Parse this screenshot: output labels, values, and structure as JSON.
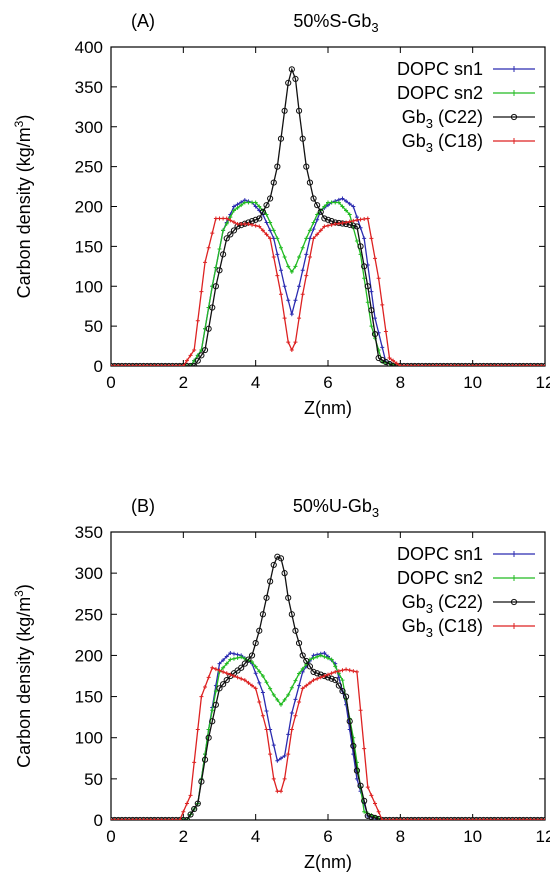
{
  "chart_data": [
    {
      "type": "line",
      "panel_label": "(A)",
      "title": "50%S-Gb",
      "title_sub": "3",
      "xlabel": "Z(nm)",
      "ylabel": "Carbon density (kg/m",
      "ylabel_sup": "3",
      "ylabel_end": ")",
      "xlim": [
        0,
        12
      ],
      "ylim": [
        0,
        400
      ],
      "xticks": [
        0,
        2,
        4,
        6,
        8,
        10,
        12
      ],
      "yticks": [
        0,
        50,
        100,
        150,
        200,
        250,
        300,
        350,
        400
      ],
      "grid": false,
      "legend_position": "top-right",
      "series": [
        {
          "label": "DOPC sn1",
          "color": "#2b2bb0",
          "marker": "plus",
          "x": [
            0,
            2.2,
            2.5,
            2.8,
            3.1,
            3.4,
            3.7,
            3.9,
            4.2,
            4.5,
            4.8,
            5.0,
            5.2,
            5.5,
            5.8,
            6.1,
            6.4,
            6.7,
            7.0,
            7.3,
            7.6,
            8.0,
            12
          ],
          "y": [
            0,
            0,
            20,
            100,
            170,
            200,
            208,
            205,
            190,
            160,
            100,
            65,
            100,
            160,
            195,
            205,
            210,
            200,
            160,
            60,
            5,
            0,
            0
          ]
        },
        {
          "label": "DOPC sn2",
          "color": "#22bb22",
          "marker": "plus",
          "x": [
            0,
            2.2,
            2.5,
            2.8,
            3.1,
            3.4,
            3.7,
            4.0,
            4.3,
            4.6,
            4.9,
            5.0,
            5.1,
            5.4,
            5.7,
            6.0,
            6.3,
            6.6,
            6.9,
            7.2,
            7.5,
            8.0,
            12
          ],
          "y": [
            0,
            0,
            20,
            100,
            170,
            195,
            205,
            205,
            190,
            160,
            125,
            118,
            125,
            160,
            190,
            205,
            205,
            190,
            140,
            50,
            5,
            0,
            0
          ]
        },
        {
          "label": "Gb (C22)",
          "label_base": "Gb",
          "label_sub": "3",
          "label_end": " (C22)",
          "color": "#111111",
          "marker": "circle",
          "x": [
            0,
            2.3,
            2.6,
            2.9,
            3.2,
            3.5,
            3.8,
            4.1,
            4.4,
            4.6,
            4.8,
            4.9,
            5.0,
            5.1,
            5.2,
            5.4,
            5.6,
            5.9,
            6.2,
            6.5,
            6.8,
            7.1,
            7.4,
            7.8,
            12
          ],
          "y": [
            0,
            0,
            20,
            100,
            160,
            175,
            180,
            185,
            210,
            250,
            320,
            355,
            372,
            360,
            320,
            250,
            210,
            185,
            180,
            178,
            175,
            100,
            10,
            0,
            0
          ]
        },
        {
          "label": "Gb (C18)",
          "label_base": "Gb",
          "label_sub": "3",
          "label_end": " (C18)",
          "color": "#dd2222",
          "marker": "plus",
          "x": [
            0,
            2.0,
            2.3,
            2.6,
            2.9,
            3.2,
            3.5,
            3.8,
            4.1,
            4.4,
            4.7,
            4.9,
            5.0,
            5.1,
            5.3,
            5.6,
            5.9,
            6.2,
            6.5,
            6.8,
            7.1,
            7.4,
            7.7,
            8.0,
            12
          ],
          "y": [
            0,
            0,
            20,
            130,
            185,
            185,
            178,
            178,
            175,
            160,
            90,
            30,
            20,
            30,
            90,
            160,
            175,
            178,
            180,
            183,
            185,
            110,
            10,
            0,
            0
          ]
        }
      ]
    },
    {
      "type": "line",
      "panel_label": "(B)",
      "title": "50%U-Gb",
      "title_sub": "3",
      "xlabel": "Z(nm)",
      "ylabel": "Carbon density (kg/m",
      "ylabel_sup": "3",
      "ylabel_end": ")",
      "xlim": [
        0,
        12
      ],
      "ylim": [
        0,
        350
      ],
      "xticks": [
        0,
        2,
        4,
        6,
        8,
        10,
        12
      ],
      "yticks": [
        0,
        50,
        100,
        150,
        200,
        250,
        300,
        350
      ],
      "grid": false,
      "legend_position": "top-right",
      "series": [
        {
          "label": "DOPC sn1",
          "color": "#2b2bb0",
          "marker": "plus",
          "x": [
            0,
            2.1,
            2.4,
            2.7,
            3.0,
            3.3,
            3.6,
            3.9,
            4.2,
            4.4,
            4.6,
            4.8,
            5.0,
            5.3,
            5.6,
            5.9,
            6.2,
            6.5,
            6.8,
            7.1,
            7.5,
            12
          ],
          "y": [
            0,
            0,
            20,
            110,
            190,
            203,
            200,
            190,
            155,
            110,
            72,
            78,
            130,
            180,
            200,
            203,
            190,
            140,
            50,
            5,
            0,
            0
          ]
        },
        {
          "label": "DOPC sn2",
          "color": "#22bb22",
          "marker": "plus",
          "x": [
            0,
            2.1,
            2.4,
            2.7,
            3.0,
            3.3,
            3.6,
            3.9,
            4.2,
            4.5,
            4.7,
            4.9,
            5.2,
            5.5,
            5.8,
            6.1,
            6.4,
            6.7,
            7.0,
            7.5,
            12
          ],
          "y": [
            0,
            0,
            20,
            110,
            180,
            195,
            198,
            192,
            175,
            152,
            140,
            152,
            178,
            195,
            200,
            195,
            170,
            100,
            10,
            0,
            0
          ]
        },
        {
          "label": "Gb (C22)",
          "label_base": "Gb",
          "label_sub": "3",
          "label_end": " (C22)",
          "color": "#111111",
          "marker": "circle",
          "x": [
            0,
            2.1,
            2.4,
            2.7,
            3.0,
            3.3,
            3.6,
            3.9,
            4.1,
            4.3,
            4.5,
            4.6,
            4.7,
            4.8,
            4.9,
            5.1,
            5.3,
            5.6,
            5.9,
            6.2,
            6.5,
            6.8,
            7.1,
            7.5,
            12
          ],
          "y": [
            0,
            0,
            20,
            100,
            160,
            175,
            185,
            200,
            230,
            270,
            310,
            320,
            318,
            300,
            270,
            230,
            200,
            180,
            175,
            170,
            150,
            60,
            5,
            0,
            0
          ]
        },
        {
          "label": "Gb (C18)",
          "label_base": "Gb",
          "label_sub": "3",
          "label_end": " (C18)",
          "color": "#dd2222",
          "marker": "plus",
          "x": [
            0,
            1.9,
            2.2,
            2.5,
            2.8,
            3.1,
            3.4,
            3.7,
            4.0,
            4.3,
            4.5,
            4.6,
            4.7,
            4.8,
            5.0,
            5.3,
            5.6,
            5.9,
            6.2,
            6.5,
            6.8,
            7.1,
            7.5,
            12
          ],
          "y": [
            0,
            0,
            30,
            150,
            185,
            180,
            175,
            170,
            160,
            110,
            50,
            35,
            35,
            50,
            110,
            160,
            170,
            175,
            180,
            183,
            180,
            40,
            0,
            0
          ]
        }
      ]
    }
  ]
}
